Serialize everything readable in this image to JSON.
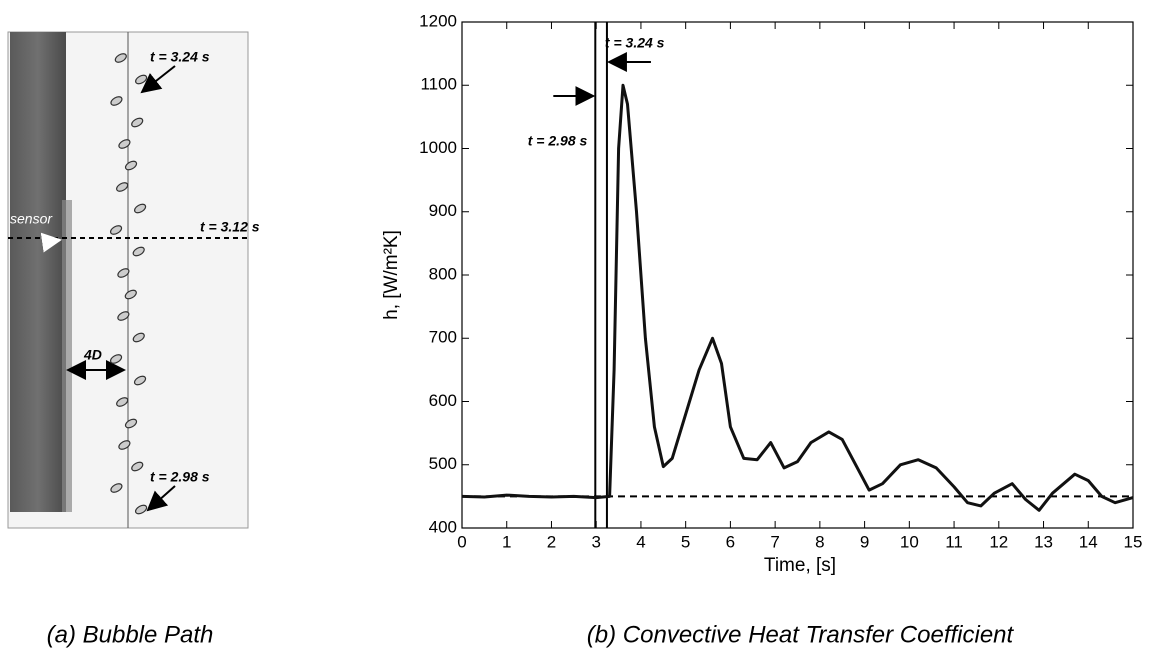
{
  "image_panel": {
    "caption": "(a) Bubble Path",
    "annotations": [
      "t = 3.24 s",
      "sensor",
      "t = 3.12 s",
      "4D",
      "t = 2.98 s"
    ]
  },
  "chart_data": {
    "type": "line",
    "caption": "(b) Convective Heat Transfer Coefficient",
    "xlabel": "Time, [s]",
    "ylabel": "h, [W/m²K]",
    "xlim": [
      0,
      15
    ],
    "ylim": [
      400,
      1200
    ],
    "xticks": [
      0,
      1,
      2,
      3,
      4,
      5,
      6,
      7,
      8,
      9,
      10,
      11,
      12,
      13,
      14,
      15
    ],
    "yticks": [
      400,
      500,
      600,
      700,
      800,
      900,
      1000,
      1100,
      1200
    ],
    "color": "#111111",
    "x": [
      0,
      0.5,
      1,
      1.5,
      2,
      2.5,
      3,
      3.3,
      3.4,
      3.5,
      3.6,
      3.7,
      3.9,
      4.1,
      4.3,
      4.5,
      4.7,
      5.0,
      5.3,
      5.6,
      5.8,
      6.0,
      6.3,
      6.6,
      6.9,
      7.2,
      7.5,
      7.8,
      8.2,
      8.5,
      8.8,
      9.1,
      9.4,
      9.8,
      10.2,
      10.6,
      11.0,
      11.3,
      11.6,
      11.9,
      12.3,
      12.6,
      12.9,
      13.2,
      13.7,
      14.0,
      14.3,
      14.6,
      15
    ],
    "values": [
      450,
      449,
      452,
      450,
      449,
      450,
      448,
      450,
      650,
      1000,
      1100,
      1070,
      900,
      700,
      560,
      497,
      510,
      580,
      650,
      700,
      660,
      560,
      510,
      508,
      535,
      495,
      505,
      535,
      552,
      540,
      500,
      460,
      470,
      500,
      508,
      495,
      465,
      440,
      435,
      455,
      470,
      445,
      428,
      455,
      485,
      475,
      450,
      440,
      448
    ],
    "baseline": 450,
    "vlines": [
      {
        "x": 2.98,
        "label": "t = 2.98 s"
      },
      {
        "x": 3.24,
        "label": "t = 3.24 s"
      }
    ]
  }
}
